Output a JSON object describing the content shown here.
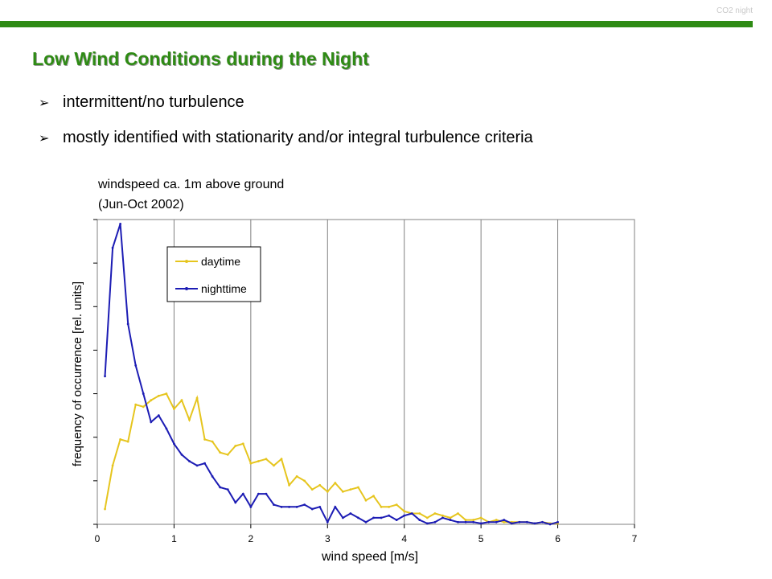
{
  "slide": {
    "tag": "CO2 night",
    "title": "Low Wind Conditions during the Night",
    "bullets": [
      "intermittent/no turbulence",
      "mostly identified with stationarity and/or integral turbulence criteria"
    ]
  },
  "colors": {
    "accent": "#2e8b14",
    "daytime": "#e6c51e",
    "nighttime": "#1c1cb4"
  },
  "chart_data": {
    "type": "line",
    "title_lines": [
      "windspeed ca. 1m above ground",
      "(Jun-Oct 2002)"
    ],
    "xlabel": "wind speed [m/s]",
    "ylabel": "frequency of occurrence [rel. units]",
    "xlim": [
      0,
      7
    ],
    "ylim": [
      0,
      7
    ],
    "x_ticks": [
      0,
      1,
      2,
      3,
      4,
      5,
      6,
      7
    ],
    "y_tick_labels_shown": false,
    "grid": "vertical",
    "legend_position": "top-left",
    "x": [
      0.1,
      0.2,
      0.3,
      0.4,
      0.5,
      0.6,
      0.7,
      0.8,
      0.9,
      1.0,
      1.1,
      1.2,
      1.3,
      1.4,
      1.5,
      1.6,
      1.7,
      1.8,
      1.9,
      2.0,
      2.1,
      2.2,
      2.3,
      2.4,
      2.5,
      2.6,
      2.7,
      2.8,
      2.9,
      3.0,
      3.1,
      3.2,
      3.3,
      3.4,
      3.5,
      3.6,
      3.7,
      3.8,
      3.9,
      4.0,
      4.1,
      4.2,
      4.3,
      4.4,
      4.5,
      4.6,
      4.7,
      4.8,
      4.9,
      5.0,
      5.1,
      5.2,
      5.3,
      5.4,
      5.5,
      5.6,
      5.7,
      5.8,
      5.9,
      6.0
    ],
    "series": [
      {
        "name": "daytime",
        "values": [
          0.35,
          1.35,
          1.95,
          1.9,
          2.75,
          2.7,
          2.85,
          2.95,
          3.0,
          2.65,
          2.85,
          2.4,
          2.9,
          1.95,
          1.9,
          1.65,
          1.6,
          1.8,
          1.85,
          1.4,
          1.45,
          1.5,
          1.35,
          1.5,
          0.9,
          1.1,
          1.0,
          0.8,
          0.9,
          0.75,
          0.95,
          0.75,
          0.8,
          0.85,
          0.55,
          0.65,
          0.4,
          0.4,
          0.45,
          0.3,
          0.25,
          0.25,
          0.15,
          0.25,
          0.2,
          0.15,
          0.25,
          0.1,
          0.1,
          0.15,
          0.05,
          0.1,
          0.05,
          0.05,
          0.05,
          0.05,
          0.02,
          0.05,
          0.02,
          0.02
        ]
      },
      {
        "name": "nighttime",
        "values": [
          3.4,
          6.35,
          6.9,
          4.6,
          3.65,
          3.0,
          2.35,
          2.5,
          2.2,
          1.85,
          1.6,
          1.45,
          1.35,
          1.4,
          1.1,
          0.85,
          0.8,
          0.5,
          0.7,
          0.4,
          0.7,
          0.7,
          0.45,
          0.4,
          0.4,
          0.4,
          0.45,
          0.35,
          0.4,
          0.05,
          0.4,
          0.15,
          0.25,
          0.15,
          0.05,
          0.15,
          0.15,
          0.2,
          0.1,
          0.2,
          0.25,
          0.1,
          0.02,
          0.05,
          0.15,
          0.1,
          0.05,
          0.05,
          0.05,
          0.02,
          0.05,
          0.05,
          0.1,
          0.02,
          0.05,
          0.05,
          0.02,
          0.05,
          0.0,
          0.05
        ]
      }
    ]
  }
}
